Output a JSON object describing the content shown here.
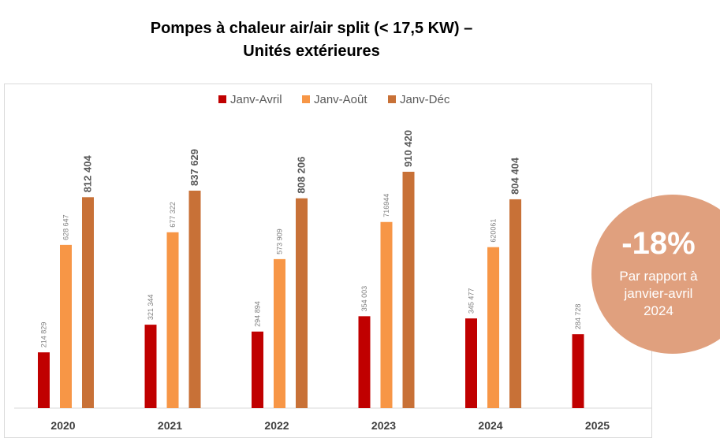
{
  "header": {
    "title_line1": "Pompes à chaleur air/air split (< 17,5 KW) –",
    "title_line2": "Unités extérieures"
  },
  "badge": {
    "value": "-18%",
    "text": "Par rapport à\njanvier-avril\n2024",
    "color": "#e0a07e"
  },
  "chart_data": {
    "type": "bar",
    "title": "Pompes à chaleur air/air split (< 17,5 KW) – Unités extérieures",
    "categories": [
      "2020",
      "2021",
      "2022",
      "2023",
      "2024",
      "2025"
    ],
    "legend_position": "top-center",
    "grid": false,
    "ylim": [
      0,
      950000
    ],
    "series": [
      {
        "name": "Janv-Avril",
        "color": "#c00000",
        "values": [
          214829,
          321344,
          294894,
          354003,
          345477,
          284728
        ],
        "labels": [
          "214 829",
          "321 344",
          "294 894",
          "354 003",
          "345 477",
          "284 728"
        ]
      },
      {
        "name": "Janv-Août",
        "color": "#f79646",
        "values": [
          628647,
          677322,
          573909,
          716944,
          620061,
          null
        ],
        "labels": [
          "628 647",
          "677 322",
          "573 909",
          "716944",
          "620061",
          ""
        ]
      },
      {
        "name": "Janv-Déc",
        "color": "#c87137",
        "values": [
          812404,
          837629,
          808206,
          910420,
          804404,
          null
        ],
        "labels": [
          "812 404",
          "837 629",
          "808 206",
          "910 420",
          "804 404",
          ""
        ]
      }
    ]
  }
}
